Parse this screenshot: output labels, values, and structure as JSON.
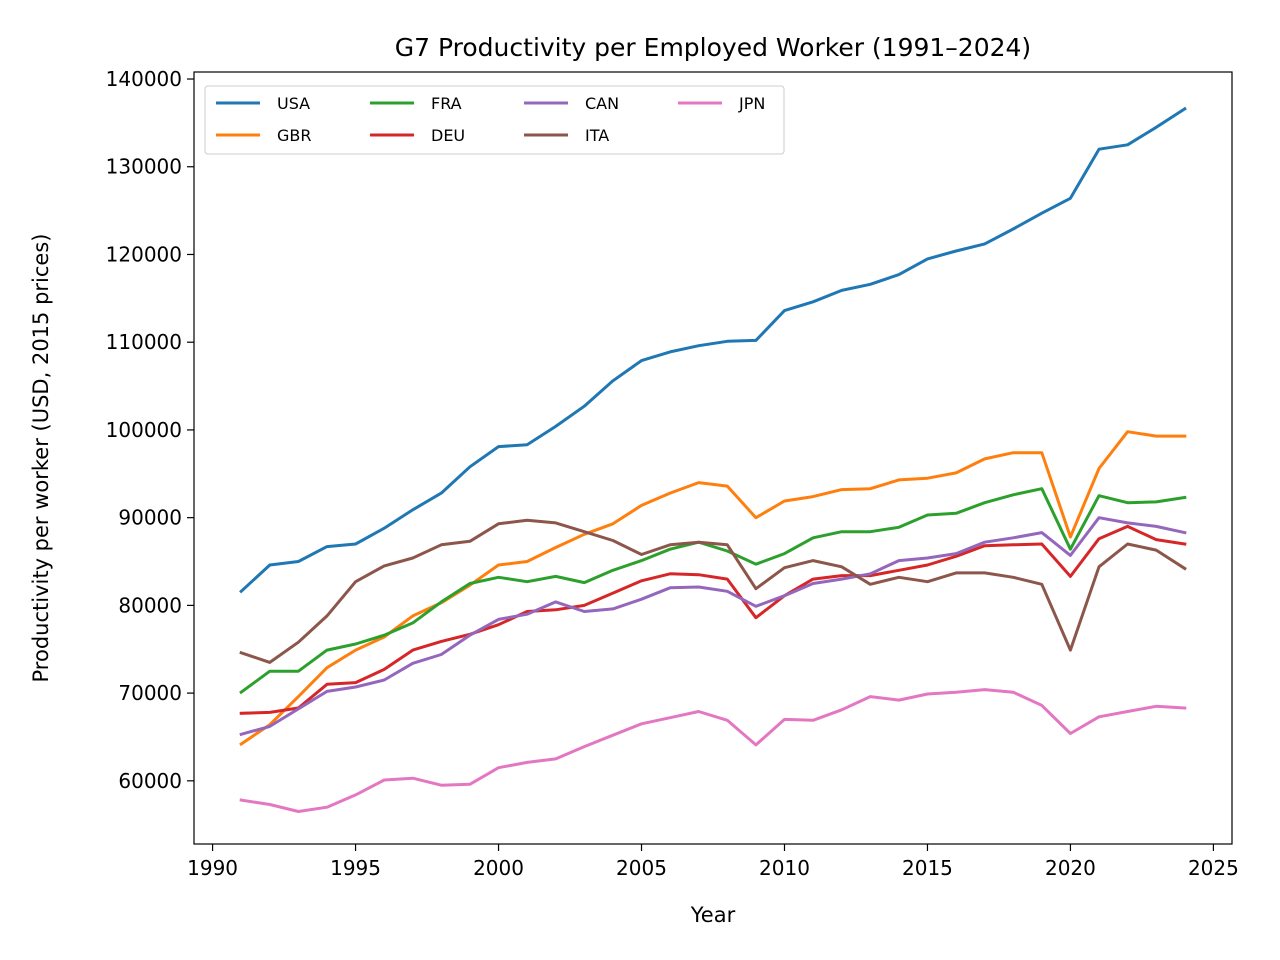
{
  "chart_data": {
    "type": "line",
    "title": "G7 Productivity per Employed Worker (1991–2024)",
    "xlabel": "Year",
    "ylabel": "Productivity per worker (USD, 2015 prices)",
    "xlim": [
      1989.35,
      2025.65
    ],
    "ylim": [
      52800,
      140800
    ],
    "xticks": [
      1990,
      1995,
      2000,
      2005,
      2010,
      2015,
      2020,
      2025
    ],
    "yticks": [
      60000,
      70000,
      80000,
      90000,
      100000,
      110000,
      120000,
      130000,
      140000
    ],
    "grid": false,
    "legend": {
      "position": "top-left",
      "columns": 4
    },
    "x": [
      1991,
      1992,
      1993,
      1994,
      1995,
      1996,
      1997,
      1998,
      1999,
      2000,
      2001,
      2002,
      2003,
      2004,
      2005,
      2006,
      2007,
      2008,
      2009,
      2010,
      2011,
      2012,
      2013,
      2014,
      2015,
      2016,
      2017,
      2018,
      2019,
      2020,
      2021,
      2022,
      2023,
      2024
    ],
    "series": [
      {
        "name": "USA",
        "color": "#1f77b4",
        "values": [
          81600,
          84600,
          85000,
          86700,
          87000,
          88800,
          90900,
          92800,
          95800,
          98100,
          98300,
          100400,
          102700,
          105600,
          107900,
          108900,
          109600,
          110100,
          110200,
          113600,
          114600,
          115900,
          116600,
          117700,
          119500,
          120400,
          121200,
          122900,
          124700,
          126400,
          132000,
          132500,
          134500,
          136600
        ]
      },
      {
        "name": "GBR",
        "color": "#ff7f0e",
        "values": [
          64200,
          66400,
          69600,
          72900,
          74900,
          76400,
          78800,
          80300,
          82300,
          84600,
          85000,
          86600,
          88100,
          89300,
          91400,
          92800,
          94000,
          93600,
          90000,
          91900,
          92400,
          93200,
          93300,
          94300,
          94500,
          95100,
          96700,
          97400,
          97400,
          87800,
          95600,
          99800,
          99300,
          99300
        ]
      },
      {
        "name": "FRA",
        "color": "#2ca02c",
        "values": [
          70100,
          72500,
          72500,
          74900,
          75600,
          76600,
          78000,
          80400,
          82500,
          83200,
          82700,
          83300,
          82600,
          84000,
          85100,
          86400,
          87200,
          86200,
          84700,
          85900,
          87700,
          88400,
          88400,
          88900,
          90300,
          90500,
          91700,
          92600,
          93300,
          86400,
          92500,
          91700,
          91800,
          92300
        ]
      },
      {
        "name": "DEU",
        "color": "#d62728",
        "values": [
          67700,
          67800,
          68300,
          71000,
          71200,
          72700,
          74900,
          75900,
          76700,
          77800,
          79300,
          79500,
          80000,
          81400,
          82800,
          83600,
          83500,
          83000,
          78600,
          81100,
          83000,
          83400,
          83400,
          84000,
          84600,
          85600,
          86800,
          86900,
          87000,
          83300,
          87600,
          89000,
          87500,
          87000
        ]
      },
      {
        "name": "CAN",
        "color": "#9467bd",
        "values": [
          65300,
          66200,
          68200,
          70200,
          70700,
          71500,
          73400,
          74400,
          76600,
          78400,
          79000,
          80400,
          79300,
          79600,
          80700,
          82000,
          82100,
          81600,
          79900,
          81100,
          82500,
          83000,
          83600,
          85100,
          85400,
          85900,
          87200,
          87700,
          88300,
          85700,
          90000,
          89400,
          89000,
          88300
        ]
      },
      {
        "name": "ITA",
        "color": "#8c564b",
        "values": [
          74600,
          73500,
          75800,
          78800,
          82700,
          84500,
          85400,
          86900,
          87300,
          89300,
          89700,
          89400,
          88400,
          87400,
          85800,
          86900,
          87200,
          86900,
          81900,
          84300,
          85100,
          84400,
          82400,
          83200,
          82700,
          83700,
          83700,
          83200,
          82400,
          74900,
          84400,
          87000,
          86300,
          84200
        ]
      },
      {
        "name": "JPN",
        "color": "#e377c2",
        "values": [
          57800,
          57300,
          56500,
          57000,
          58400,
          60100,
          60300,
          59500,
          59600,
          61500,
          62100,
          62500,
          63900,
          65200,
          66500,
          67200,
          67900,
          66900,
          64100,
          67000,
          66900,
          68100,
          69600,
          69200,
          69900,
          70100,
          70400,
          70100,
          68600,
          65400,
          67300,
          67900,
          68500,
          68300
        ]
      }
    ]
  }
}
